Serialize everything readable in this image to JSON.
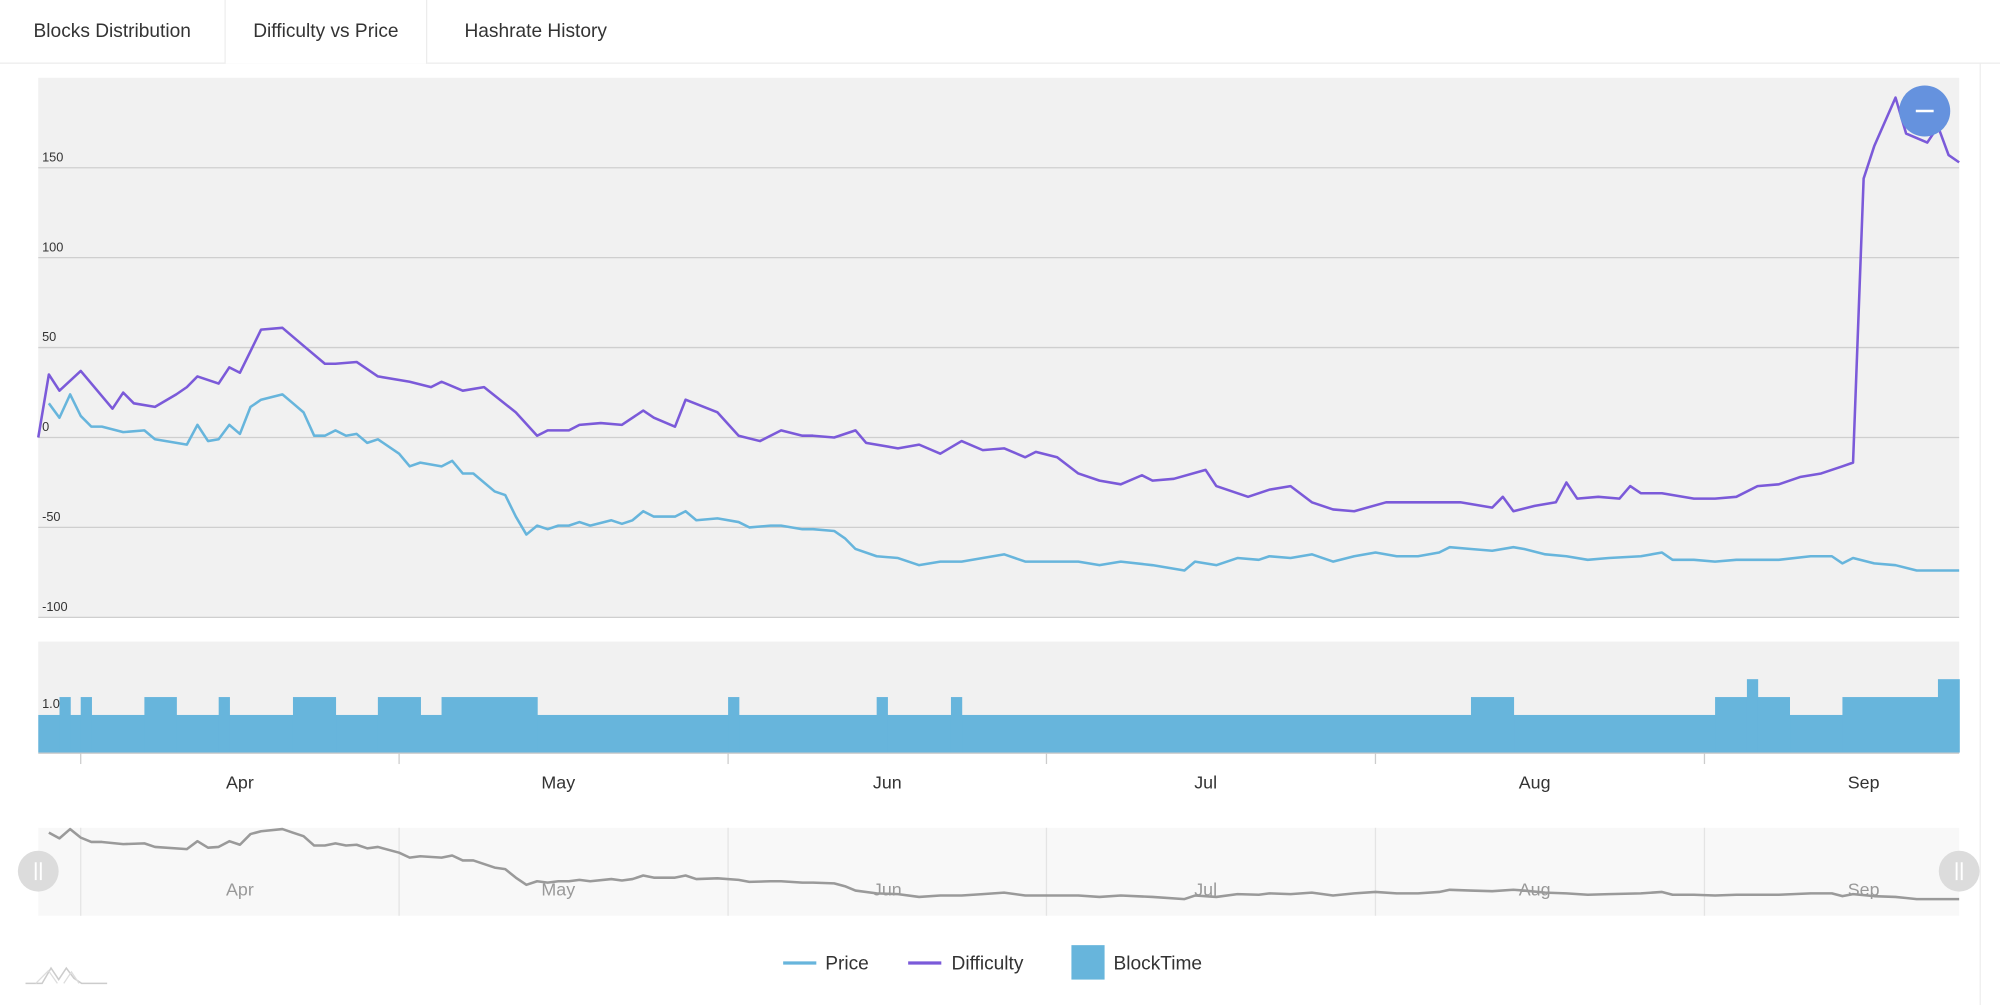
{
  "tabs": [
    {
      "label": "Blocks Distribution",
      "active": false
    },
    {
      "label": "Difficulty vs Price",
      "active": true
    },
    {
      "label": "Hashrate History",
      "active": false
    }
  ],
  "colors": {
    "price": "#67b5dc",
    "difficulty": "#7b5ad9",
    "blocktime": "#67b5dc",
    "zoom_button": "#6592de",
    "navigator": "#9a9a9a"
  },
  "zoom_out_icon": "minus-icon",
  "chart_data": {
    "type": "line",
    "x_unit": "days since Mar 28",
    "x_range": [
      0,
      181
    ],
    "grid": true,
    "legend_position": "bottom-center",
    "legend": [
      "Price",
      "Difficulty",
      "BlockTime"
    ],
    "main_axis": {
      "ylim": [
        -100,
        200
      ],
      "ticks": [
        150,
        100,
        50,
        0,
        -50,
        -100
      ],
      "tick_labels": [
        "150",
        "100",
        "50",
        "0",
        "-50",
        "-100"
      ]
    },
    "months": [
      {
        "label": "Apr",
        "start": 4
      },
      {
        "label": "May",
        "start": 34
      },
      {
        "label": "Jun",
        "start": 65
      },
      {
        "label": "Jul",
        "start": 95
      },
      {
        "label": "Aug",
        "start": 126
      },
      {
        "label": "Sep",
        "start": 157
      }
    ],
    "series": [
      {
        "name": "Price",
        "type": "line",
        "points": [
          [
            1,
            19
          ],
          [
            2,
            11
          ],
          [
            3,
            24
          ],
          [
            4,
            12
          ],
          [
            5,
            6
          ],
          [
            6,
            6
          ],
          [
            8,
            3
          ],
          [
            10,
            4
          ],
          [
            11,
            -1
          ],
          [
            14,
            -4
          ],
          [
            15,
            7
          ],
          [
            16,
            -2
          ],
          [
            17,
            -1
          ],
          [
            18,
            7
          ],
          [
            19,
            2
          ],
          [
            20,
            17
          ],
          [
            21,
            21
          ],
          [
            23,
            24
          ],
          [
            24,
            19
          ],
          [
            25,
            14
          ],
          [
            26,
            1
          ],
          [
            27,
            1
          ],
          [
            28,
            4
          ],
          [
            29,
            1
          ],
          [
            30,
            2
          ],
          [
            31,
            -3
          ],
          [
            32,
            -1
          ],
          [
            34,
            -9
          ],
          [
            35,
            -16
          ],
          [
            36,
            -14
          ],
          [
            38,
            -16
          ],
          [
            39,
            -13
          ],
          [
            40,
            -20
          ],
          [
            41,
            -20
          ],
          [
            43,
            -30
          ],
          [
            44,
            -32
          ],
          [
            45,
            -44
          ],
          [
            46,
            -54
          ],
          [
            47,
            -49
          ],
          [
            48,
            -51
          ],
          [
            49,
            -49
          ],
          [
            50,
            -49
          ],
          [
            51,
            -47
          ],
          [
            52,
            -49
          ],
          [
            54,
            -46
          ],
          [
            55,
            -48
          ],
          [
            56,
            -46
          ],
          [
            57,
            -41
          ],
          [
            58,
            -44
          ],
          [
            60,
            -44
          ],
          [
            61,
            -41
          ],
          [
            62,
            -46
          ],
          [
            64,
            -45
          ],
          [
            66,
            -47
          ],
          [
            67,
            -50
          ],
          [
            69,
            -49
          ],
          [
            70,
            -49
          ],
          [
            72,
            -51
          ],
          [
            73,
            -51
          ],
          [
            75,
            -52
          ],
          [
            76,
            -56
          ],
          [
            77,
            -62
          ],
          [
            79,
            -66
          ],
          [
            81,
            -67
          ],
          [
            83,
            -71
          ],
          [
            85,
            -69
          ],
          [
            87,
            -69
          ],
          [
            89,
            -67
          ],
          [
            91,
            -65
          ],
          [
            93,
            -69
          ],
          [
            95,
            -69
          ],
          [
            98,
            -69
          ],
          [
            100,
            -71
          ],
          [
            102,
            -69
          ],
          [
            105,
            -71
          ],
          [
            108,
            -74
          ],
          [
            109,
            -69
          ],
          [
            111,
            -71
          ],
          [
            113,
            -67
          ],
          [
            115,
            -68
          ],
          [
            116,
            -66
          ],
          [
            118,
            -67
          ],
          [
            120,
            -65
          ],
          [
            122,
            -69
          ],
          [
            124,
            -66
          ],
          [
            126,
            -64
          ],
          [
            128,
            -66
          ],
          [
            130,
            -66
          ],
          [
            132,
            -64
          ],
          [
            133,
            -61
          ],
          [
            135,
            -62
          ],
          [
            137,
            -63
          ],
          [
            139,
            -61
          ],
          [
            140,
            -62
          ],
          [
            142,
            -65
          ],
          [
            144,
            -66
          ],
          [
            146,
            -68
          ],
          [
            148,
            -67
          ],
          [
            151,
            -66
          ],
          [
            153,
            -64
          ],
          [
            154,
            -68
          ],
          [
            156,
            -68
          ],
          [
            158,
            -69
          ],
          [
            160,
            -68
          ],
          [
            163,
            -68
          ],
          [
            164,
            -68
          ],
          [
            167,
            -66
          ],
          [
            169,
            -66
          ],
          [
            170,
            -70
          ],
          [
            171,
            -67
          ],
          [
            173,
            -70
          ],
          [
            175,
            -71
          ],
          [
            177,
            -74
          ],
          [
            180,
            -74
          ],
          [
            181,
            -74
          ]
        ]
      },
      {
        "name": "Difficulty",
        "type": "line",
        "points": [
          [
            0,
            0
          ],
          [
            1,
            35
          ],
          [
            2,
            26
          ],
          [
            4,
            37
          ],
          [
            7,
            16
          ],
          [
            8,
            25
          ],
          [
            9,
            19
          ],
          [
            11,
            17
          ],
          [
            13,
            24
          ],
          [
            14,
            28
          ],
          [
            15,
            34
          ],
          [
            17,
            30
          ],
          [
            18,
            39
          ],
          [
            19,
            36
          ],
          [
            20,
            48
          ],
          [
            21,
            60
          ],
          [
            23,
            61
          ],
          [
            25,
            51
          ],
          [
            27,
            41
          ],
          [
            28,
            41
          ],
          [
            30,
            42
          ],
          [
            32,
            34
          ],
          [
            35,
            31
          ],
          [
            37,
            28
          ],
          [
            38,
            31
          ],
          [
            40,
            26
          ],
          [
            42,
            28
          ],
          [
            45,
            14
          ],
          [
            47,
            1
          ],
          [
            48,
            4
          ],
          [
            50,
            4
          ],
          [
            51,
            7
          ],
          [
            53,
            8
          ],
          [
            55,
            7
          ],
          [
            57,
            15
          ],
          [
            58,
            11
          ],
          [
            60,
            6
          ],
          [
            61,
            21
          ],
          [
            64,
            14
          ],
          [
            66,
            1
          ],
          [
            68,
            -2
          ],
          [
            70,
            4
          ],
          [
            72,
            1
          ],
          [
            73,
            1
          ],
          [
            75,
            0
          ],
          [
            77,
            4
          ],
          [
            78,
            -3
          ],
          [
            81,
            -6
          ],
          [
            83,
            -4
          ],
          [
            85,
            -9
          ],
          [
            87,
            -2
          ],
          [
            89,
            -7
          ],
          [
            91,
            -6
          ],
          [
            93,
            -11
          ],
          [
            94,
            -8
          ],
          [
            96,
            -11
          ],
          [
            98,
            -20
          ],
          [
            100,
            -24
          ],
          [
            102,
            -26
          ],
          [
            104,
            -21
          ],
          [
            105,
            -24
          ],
          [
            107,
            -23
          ],
          [
            110,
            -18
          ],
          [
            111,
            -27
          ],
          [
            114,
            -33
          ],
          [
            116,
            -29
          ],
          [
            118,
            -27
          ],
          [
            120,
            -36
          ],
          [
            122,
            -40
          ],
          [
            124,
            -41
          ],
          [
            127,
            -36
          ],
          [
            129,
            -36
          ],
          [
            131,
            -36
          ],
          [
            134,
            -36
          ],
          [
            137,
            -39
          ],
          [
            138,
            -33
          ],
          [
            139,
            -41
          ],
          [
            141,
            -38
          ],
          [
            143,
            -36
          ],
          [
            144,
            -25
          ],
          [
            145,
            -34
          ],
          [
            147,
            -33
          ],
          [
            149,
            -34
          ],
          [
            150,
            -27
          ],
          [
            151,
            -31
          ],
          [
            153,
            -31
          ],
          [
            156,
            -34
          ],
          [
            158,
            -34
          ],
          [
            160,
            -33
          ],
          [
            162,
            -27
          ],
          [
            164,
            -26
          ],
          [
            166,
            -22
          ],
          [
            168,
            -20
          ],
          [
            170,
            -16
          ],
          [
            171,
            -14
          ],
          [
            172,
            144
          ],
          [
            173,
            162
          ],
          [
            175,
            189
          ],
          [
            176,
            169
          ],
          [
            178,
            164
          ],
          [
            179,
            173
          ],
          [
            180,
            157
          ],
          [
            181,
            153
          ]
        ]
      },
      {
        "name": "BlockTime",
        "type": "bar",
        "ylim": [
          0.69,
          1.31
        ],
        "tick_label": "1.0",
        "baseline": 0.9,
        "segments": [
          [
            2,
            3,
            1.0
          ],
          [
            4,
            5,
            1.0
          ],
          [
            10,
            13,
            1.0
          ],
          [
            17,
            18,
            1.0
          ],
          [
            24,
            28,
            1.0
          ],
          [
            32,
            36,
            1.0
          ],
          [
            38,
            47,
            1.0
          ],
          [
            65,
            66,
            1.0
          ],
          [
            79,
            80,
            1.0
          ],
          [
            86,
            87,
            1.0
          ],
          [
            135,
            139,
            1.0
          ],
          [
            158,
            161,
            1.0
          ],
          [
            161,
            162,
            1.1
          ],
          [
            162,
            165,
            1.0
          ],
          [
            170,
            179,
            1.0
          ],
          [
            179,
            181,
            1.1
          ]
        ]
      }
    ]
  }
}
